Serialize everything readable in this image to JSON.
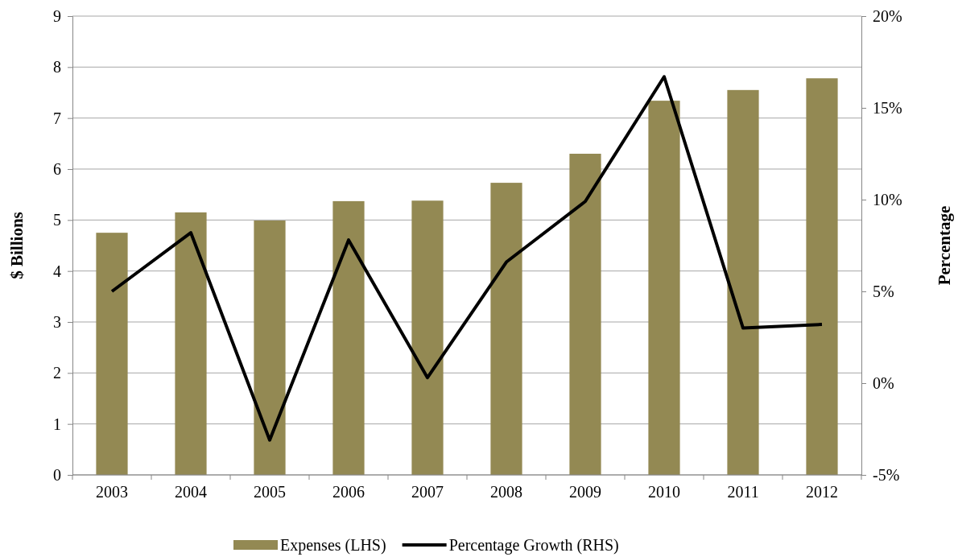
{
  "chart_data": {
    "type": "bar",
    "ylabel": "$ Billions",
    "y2label": "Percentage",
    "categories": [
      "2003",
      "2004",
      "2005",
      "2006",
      "2007",
      "2008",
      "2009",
      "2010",
      "2011",
      "2012"
    ],
    "series": [
      {
        "name": "Expenses (LHS)",
        "color": "#938953",
        "values": [
          4.75,
          5.15,
          4.99,
          5.37,
          5.38,
          5.73,
          6.3,
          7.34,
          7.55,
          7.78
        ]
      },
      {
        "name": "Percentage Growth (RHS)",
        "type": "line",
        "axis": "y2",
        "color": "#000000",
        "values": [
          5.0,
          8.2,
          -3.1,
          7.8,
          0.3,
          6.6,
          9.9,
          16.7,
          3.0,
          3.2
        ]
      }
    ],
    "ylim": [
      0,
      9
    ],
    "yticks": [
      0,
      1,
      2,
      3,
      4,
      5,
      6,
      7,
      8,
      9
    ],
    "y2lim": [
      -5,
      20
    ],
    "y2ticks": [
      {
        "value": -5,
        "label": "-5%"
      },
      {
        "value": 0,
        "label": "0%"
      },
      {
        "value": 5,
        "label": "5%"
      },
      {
        "value": 10,
        "label": "10%"
      },
      {
        "value": 15,
        "label": "15%"
      },
      {
        "value": 20,
        "label": "20%"
      }
    ],
    "grid": "y",
    "legend": "bottom",
    "marker": "none",
    "line_style": "solid"
  }
}
